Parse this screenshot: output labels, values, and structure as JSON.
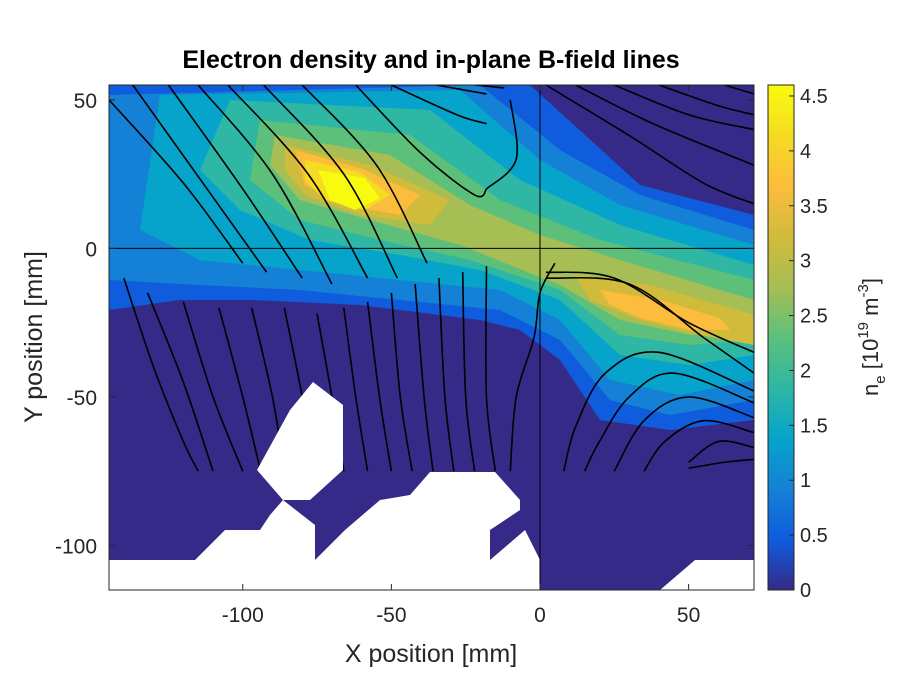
{
  "chart_data": {
    "type": "heatmap",
    "title": "Electron density and in-plane B-field lines",
    "xlabel": "X position [mm]",
    "ylabel": "Y position [mm]",
    "xlim": [
      -145,
      72
    ],
    "ylim": [
      -115,
      55
    ],
    "xticks": [
      -100,
      -50,
      0,
      50
    ],
    "yticks": [
      -100,
      -50,
      0,
      50
    ],
    "xtick_labels": [
      "-100",
      "-50",
      "0",
      "50"
    ],
    "ytick_labels": [
      "-100",
      "-50",
      "0",
      "50"
    ],
    "colorbar": {
      "label_main": "n",
      "label_sub": "e",
      "label_unit_open": " [10",
      "label_exp": "19",
      "label_unit_mid": " m",
      "label_exp2": "-3",
      "label_close": "]",
      "range": [
        0,
        4.6
      ],
      "ticks": [
        0,
        0.5,
        1,
        1.5,
        2,
        2.5,
        3,
        3.5,
        4,
        4.5
      ],
      "tick_labels": [
        "0",
        "0.5",
        "1",
        "1.5",
        "2",
        "2.5",
        "3",
        "3.5",
        "4",
        "4.5"
      ],
      "colormap": "parula"
    },
    "crosshair": {
      "x": 0,
      "y": 0
    },
    "density_peaks": [
      {
        "x": -65,
        "y": 20,
        "value": 4.5
      },
      {
        "x": 40,
        "y": -22,
        "value": 3.5
      }
    ],
    "field_lines": [
      [
        [
          -145,
          50
        ],
        [
          -120,
          22
        ],
        [
          -100,
          -5
        ]
      ],
      [
        [
          -137,
          55
        ],
        [
          -112,
          20
        ],
        [
          -92,
          -8
        ]
      ],
      [
        [
          -125,
          55
        ],
        [
          -100,
          20
        ],
        [
          -80,
          -10
        ]
      ],
      [
        [
          -115,
          55
        ],
        [
          -90,
          25
        ],
        [
          -70,
          -12
        ]
      ],
      [
        [
          -105,
          55
        ],
        [
          -78,
          25
        ],
        [
          -58,
          -10
        ]
      ],
      [
        [
          -93,
          55
        ],
        [
          -66,
          25
        ],
        [
          -48,
          -10
        ]
      ],
      [
        [
          -80,
          55
        ],
        [
          -55,
          28
        ],
        [
          -38,
          -5
        ]
      ],
      [
        [
          -62,
          55
        ],
        [
          -40,
          32
        ],
        [
          -22,
          18
        ],
        [
          -18,
          20
        ]
      ],
      [
        [
          -50,
          55
        ],
        [
          -28,
          45
        ],
        [
          -18,
          42
        ]
      ],
      [
        [
          -35,
          55
        ],
        [
          -18,
          52
        ]
      ],
      [
        [
          -22,
          55
        ],
        [
          -12,
          54
        ]
      ],
      [
        [
          -10,
          50
        ],
        [
          -8,
          30
        ],
        [
          -18,
          20
        ]
      ],
      [
        [
          2,
          55
        ],
        [
          30,
          38
        ],
        [
          55,
          22
        ],
        [
          72,
          15
        ]
      ],
      [
        [
          12,
          55
        ],
        [
          38,
          42
        ],
        [
          72,
          28
        ]
      ],
      [
        [
          25,
          55
        ],
        [
          50,
          45
        ],
        [
          72,
          40
        ]
      ],
      [
        [
          40,
          55
        ],
        [
          60,
          48
        ],
        [
          72,
          45
        ]
      ],
      [
        [
          72,
          52
        ],
        [
          62,
          55
        ]
      ],
      [
        [
          5,
          -5
        ],
        [
          0,
          -15
        ],
        [
          -2,
          -30
        ],
        [
          -8,
          -50
        ],
        [
          -10,
          -75
        ]
      ],
      [
        [
          2,
          -8
        ],
        [
          25,
          -10
        ],
        [
          50,
          -25
        ],
        [
          72,
          -35
        ]
      ],
      [
        [
          2,
          -10
        ],
        [
          30,
          -12
        ],
        [
          55,
          -30
        ],
        [
          72,
          -42
        ]
      ],
      [
        [
          72,
          -48
        ],
        [
          40,
          -35
        ],
        [
          22,
          -42
        ],
        [
          12,
          -60
        ],
        [
          8,
          -75
        ]
      ],
      [
        [
          72,
          -52
        ],
        [
          45,
          -42
        ],
        [
          30,
          -50
        ],
        [
          20,
          -65
        ],
        [
          15,
          -75
        ]
      ],
      [
        [
          72,
          -57
        ],
        [
          50,
          -50
        ],
        [
          35,
          -58
        ],
        [
          25,
          -75
        ]
      ],
      [
        [
          72,
          -62
        ],
        [
          55,
          -58
        ],
        [
          42,
          -65
        ],
        [
          35,
          -75
        ]
      ],
      [
        [
          72,
          -67
        ],
        [
          60,
          -65
        ],
        [
          50,
          -72
        ]
      ],
      [
        [
          72,
          -71
        ],
        [
          62,
          -72
        ],
        [
          50,
          -74
        ]
      ],
      [
        [
          -140,
          -10
        ],
        [
          -130,
          -40
        ],
        [
          -120,
          -65
        ],
        [
          -115,
          -75
        ]
      ],
      [
        [
          -132,
          -15
        ],
        [
          -120,
          -45
        ],
        [
          -110,
          -75
        ]
      ],
      [
        [
          -120,
          -18
        ],
        [
          -110,
          -50
        ],
        [
          -100,
          -75
        ]
      ],
      [
        [
          -108,
          -20
        ],
        [
          -100,
          -50
        ],
        [
          -94,
          -75
        ]
      ],
      [
        [
          -97,
          -20
        ],
        [
          -90,
          -50
        ],
        [
          -86,
          -75
        ]
      ],
      [
        [
          -86,
          -20
        ],
        [
          -80,
          -50
        ],
        [
          -76,
          -75
        ]
      ],
      [
        [
          -75,
          -22
        ],
        [
          -70,
          -50
        ],
        [
          -66,
          -75
        ]
      ],
      [
        [
          -66,
          -20
        ],
        [
          -62,
          -50
        ],
        [
          -58,
          -75
        ]
      ],
      [
        [
          -58,
          -18
        ],
        [
          -54,
          -50
        ],
        [
          -50,
          -75
        ]
      ],
      [
        [
          -50,
          -15
        ],
        [
          -47,
          -50
        ],
        [
          -43,
          -75
        ]
      ],
      [
        [
          -42,
          -12
        ],
        [
          -39,
          -50
        ],
        [
          -36,
          -75
        ]
      ],
      [
        [
          -34,
          -10
        ],
        [
          -32,
          -50
        ],
        [
          -29,
          -75
        ]
      ],
      [
        [
          -26,
          -8
        ],
        [
          -25,
          -50
        ],
        [
          -22,
          -75
        ]
      ],
      [
        [
          -18,
          -6
        ],
        [
          -18,
          -50
        ],
        [
          -15,
          -75
        ]
      ]
    ]
  }
}
